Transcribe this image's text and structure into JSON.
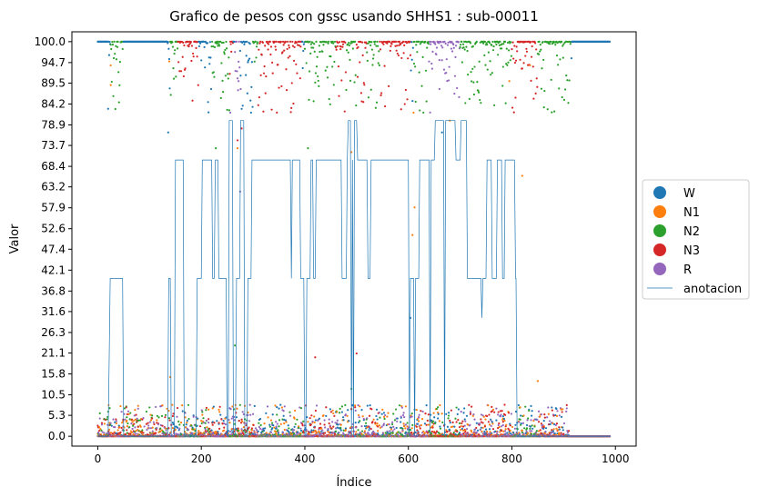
{
  "chart_data": {
    "type": "scatter",
    "title": "Grafico de pesos con gssc usando SHHS1 :  sub-00011",
    "xlabel": "Índice",
    "ylabel": "Valor",
    "xlim": [
      -50,
      1040
    ],
    "ylim": [
      -2.5,
      102.5
    ],
    "x_ticks": [
      0,
      200,
      400,
      600,
      800,
      1000
    ],
    "x_tick_labels": [
      "0",
      "200",
      "400",
      "600",
      "800",
      "1000"
    ],
    "y_ticks": [
      0.0,
      5.3,
      10.5,
      15.8,
      21.1,
      26.3,
      31.6,
      36.8,
      42.1,
      47.4,
      52.6,
      57.9,
      63.2,
      68.4,
      73.7,
      78.9,
      84.2,
      89.5,
      94.7,
      100.0
    ],
    "y_tick_labels": [
      "0.0",
      "5.3",
      "10.5",
      "15.8",
      "21.1",
      "26.3",
      "31.6",
      "36.8",
      "42.1",
      "47.4",
      "52.6",
      "57.9",
      "63.2",
      "68.4",
      "73.7",
      "78.9",
      "84.2",
      "89.5",
      "94.7",
      "100.0"
    ],
    "legend_position": "center-right-outside",
    "series": [
      {
        "name": "W",
        "color": "#1f77b4",
        "marker": "scatter",
        "runs_high": [
          [
            0,
            25
          ],
          [
            50,
            135
          ],
          [
            910,
            990
          ]
        ],
        "dominant_segments": [
          [
            0,
            25
          ],
          [
            50,
            135
          ],
          [
            260,
            290
          ],
          [
            490,
            500
          ],
          [
            910,
            990
          ]
        ]
      },
      {
        "name": "N1",
        "color": "#ff7f0e",
        "marker": "scatter",
        "outliers": [
          [
            25,
            94
          ],
          [
            25,
            89
          ],
          [
            138,
            95
          ],
          [
            612,
            58
          ],
          [
            608,
            51
          ],
          [
            610,
            82
          ],
          [
            795,
            90
          ],
          [
            820,
            66
          ],
          [
            835,
            94
          ],
          [
            680,
            80
          ],
          [
            490,
            72
          ],
          [
            270,
            73
          ],
          [
            850,
            14
          ],
          [
            140,
            15
          ]
        ]
      },
      {
        "name": "N2",
        "color": "#2ca02c",
        "marker": "scatter",
        "dominant_segments": [
          [
            25,
            50
          ],
          [
            140,
            155
          ],
          [
            220,
            255
          ],
          [
            300,
            310
          ],
          [
            400,
            460
          ],
          [
            480,
            500
          ],
          [
            520,
            545
          ],
          [
            610,
            640
          ],
          [
            700,
            800
          ],
          [
            850,
            915
          ]
        ]
      },
      {
        "name": "N3",
        "color": "#d62728",
        "marker": "scatter",
        "dominant_segments": [
          [
            155,
            195
          ],
          [
            255,
            262
          ],
          [
            310,
            395
          ],
          [
            460,
            480
          ],
          [
            500,
            520
          ],
          [
            545,
            605
          ],
          [
            800,
            850
          ]
        ]
      },
      {
        "name": "R",
        "color": "#9467bd",
        "marker": "scatter",
        "dominant_segments": [
          [
            265,
            275
          ],
          [
            640,
            700
          ]
        ]
      },
      {
        "name": "anotacion",
        "color": "#1f77b4",
        "marker": "line",
        "steps": [
          [
            0,
            0
          ],
          [
            20,
            0
          ],
          [
            22,
            20
          ],
          [
            24,
            40
          ],
          [
            48,
            40
          ],
          [
            50,
            0
          ],
          [
            135,
            0
          ],
          [
            137,
            40
          ],
          [
            140,
            40
          ],
          [
            142,
            0
          ],
          [
            148,
            0
          ],
          [
            150,
            70
          ],
          [
            165,
            70
          ],
          [
            167,
            0
          ],
          [
            190,
            0
          ],
          [
            192,
            40
          ],
          [
            200,
            40
          ],
          [
            202,
            70
          ],
          [
            220,
            70
          ],
          [
            222,
            40
          ],
          [
            225,
            40
          ],
          [
            227,
            70
          ],
          [
            232,
            70
          ],
          [
            234,
            40
          ],
          [
            248,
            40
          ],
          [
            250,
            0
          ],
          [
            252,
            0
          ],
          [
            254,
            80
          ],
          [
            260,
            80
          ],
          [
            262,
            0
          ],
          [
            266,
            0
          ],
          [
            268,
            40
          ],
          [
            274,
            40
          ],
          [
            276,
            80
          ],
          [
            282,
            80
          ],
          [
            284,
            0
          ],
          [
            288,
            0
          ],
          [
            290,
            40
          ],
          [
            296,
            40
          ],
          [
            298,
            70
          ],
          [
            372,
            70
          ],
          [
            374,
            40
          ],
          [
            376,
            70
          ],
          [
            390,
            70
          ],
          [
            392,
            40
          ],
          [
            398,
            40
          ],
          [
            400,
            0
          ],
          [
            402,
            0
          ],
          [
            404,
            40
          ],
          [
            410,
            40
          ],
          [
            412,
            70
          ],
          [
            415,
            70
          ],
          [
            417,
            40
          ],
          [
            420,
            40
          ],
          [
            422,
            70
          ],
          [
            470,
            70
          ],
          [
            472,
            40
          ],
          [
            480,
            40
          ],
          [
            482,
            70
          ],
          [
            484,
            80
          ],
          [
            488,
            80
          ],
          [
            490,
            0
          ],
          [
            492,
            70
          ],
          [
            494,
            0
          ],
          [
            496,
            80
          ],
          [
            500,
            80
          ],
          [
            502,
            70
          ],
          [
            520,
            70
          ],
          [
            522,
            40
          ],
          [
            526,
            40
          ],
          [
            528,
            70
          ],
          [
            600,
            70
          ],
          [
            602,
            0
          ],
          [
            604,
            40
          ],
          [
            610,
            40
          ],
          [
            612,
            0
          ],
          [
            614,
            40
          ],
          [
            620,
            40
          ],
          [
            622,
            70
          ],
          [
            640,
            70
          ],
          [
            642,
            0
          ],
          [
            644,
            70
          ],
          [
            650,
            70
          ],
          [
            652,
            80
          ],
          [
            668,
            80
          ],
          [
            670,
            0
          ],
          [
            672,
            80
          ],
          [
            690,
            80
          ],
          [
            692,
            70
          ],
          [
            700,
            70
          ],
          [
            702,
            80
          ],
          [
            712,
            80
          ],
          [
            714,
            40
          ],
          [
            740,
            40
          ],
          [
            742,
            30
          ],
          [
            744,
            40
          ],
          [
            750,
            40
          ],
          [
            752,
            70
          ],
          [
            760,
            70
          ],
          [
            762,
            40
          ],
          [
            770,
            40
          ],
          [
            772,
            70
          ],
          [
            780,
            70
          ],
          [
            782,
            40
          ],
          [
            785,
            40
          ],
          [
            787,
            70
          ],
          [
            805,
            70
          ],
          [
            807,
            40
          ],
          [
            808,
            40
          ],
          [
            810,
            0
          ]
        ]
      }
    ]
  }
}
